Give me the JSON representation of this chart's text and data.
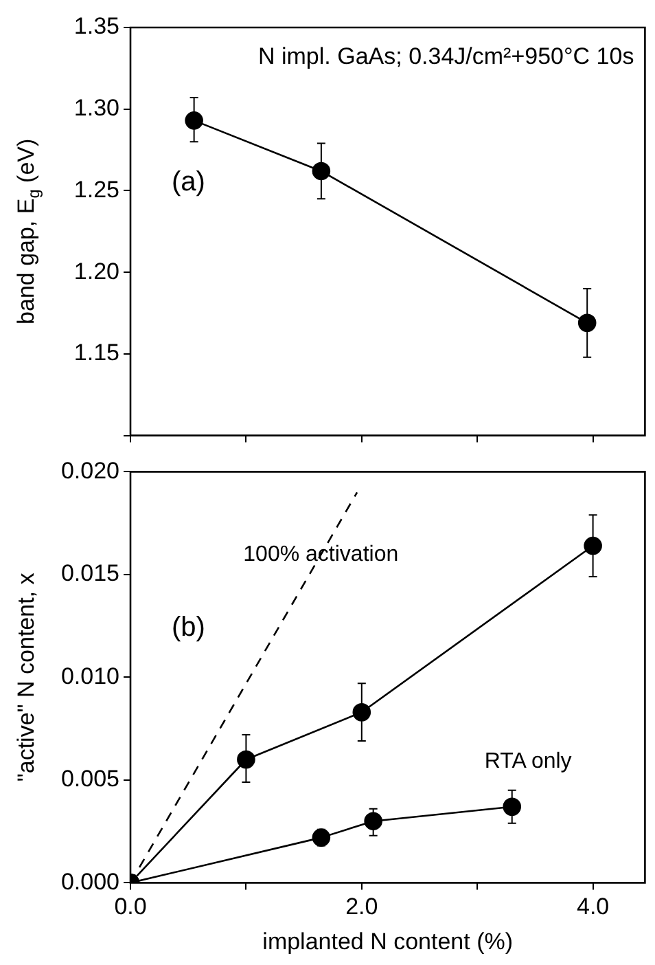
{
  "chart_data": [
    {
      "type": "line",
      "title": "N impl. GaAs; 0.34J/cm²+950°C 10s",
      "ylabel": "band gap, E$_{g}$ (eV)",
      "annotations": [
        "(a)"
      ],
      "xlim": [
        0,
        4.45
      ],
      "xticks": [
        {
          "value": 0,
          "label": null
        },
        {
          "value": 1,
          "label": null
        },
        {
          "value": 2,
          "label": null
        },
        {
          "value": 3,
          "label": null
        },
        {
          "value": 4,
          "label": null
        }
      ],
      "ylim": [
        1.1,
        1.35
      ],
      "yticks": [
        {
          "value": 1.1,
          "label": null
        },
        {
          "value": 1.15,
          "label": "1.15"
        },
        {
          "value": 1.2,
          "label": "1.20"
        },
        {
          "value": 1.25,
          "label": "1.25"
        },
        {
          "value": 1.3,
          "label": "1.30"
        },
        {
          "value": 1.35,
          "label": "1.35"
        }
      ],
      "tick_labels": "y",
      "grid": false,
      "legend": false,
      "marker": "circle",
      "line_style": "solid",
      "series": [
        {
          "color": "#000000",
          "x": [
            0.55,
            1.65,
            3.95
          ],
          "values": [
            1.293,
            1.262,
            1.169
          ],
          "errors": [
            [
              1.28,
              1.307
            ],
            [
              1.245,
              1.279
            ],
            [
              1.148,
              1.19
            ]
          ]
        }
      ]
    },
    {
      "type": "line",
      "xlabel": "implanted N content (%)",
      "ylabel": "\"active\" N content, x",
      "annotations": [
        "(b)"
      ],
      "xlim": [
        0,
        4.45
      ],
      "xticks": [
        {
          "value": 0,
          "label": "0.0"
        },
        {
          "value": 1,
          "label": null
        },
        {
          "value": 2,
          "label": "2.0"
        },
        {
          "value": 3,
          "label": null
        },
        {
          "value": 4,
          "label": "4.0"
        }
      ],
      "ylim": [
        0,
        0.02
      ],
      "yticks": [
        {
          "value": 0,
          "label": "0.000"
        },
        {
          "value": 0.005,
          "label": "0.005"
        },
        {
          "value": 0.01,
          "label": "0.010"
        },
        {
          "value": 0.015,
          "label": "0.015"
        },
        {
          "value": 0.02,
          "label": "0.020"
        }
      ],
      "grid": false,
      "legend": false,
      "line_style": "solid",
      "series": [
        {
          "name": "100% activation",
          "color": "#000000",
          "x": [
            0,
            1.96
          ],
          "values": [
            0,
            0.019
          ],
          "line_style": "dashed"
        },
        {
          "color": "#000000",
          "marker": "circle",
          "x": [
            0,
            1,
            2,
            4
          ],
          "values": [
            0,
            0.006,
            0.0083,
            0.0164
          ],
          "errors": [
            null,
            [
              0.0049,
              0.0072
            ],
            [
              0.0069,
              0.0097
            ],
            [
              0.0149,
              0.0179
            ]
          ]
        },
        {
          "name": "RTA only",
          "color": "#000000",
          "marker": "circle",
          "x": [
            0,
            1.65,
            2.1,
            3.3
          ],
          "values": [
            0,
            0.0022,
            0.003,
            0.0037
          ],
          "errors": [
            null,
            [
              0.0018,
              0.0026
            ],
            [
              0.0023,
              0.0036
            ],
            [
              0.0029,
              0.0045
            ]
          ]
        }
      ]
    }
  ]
}
